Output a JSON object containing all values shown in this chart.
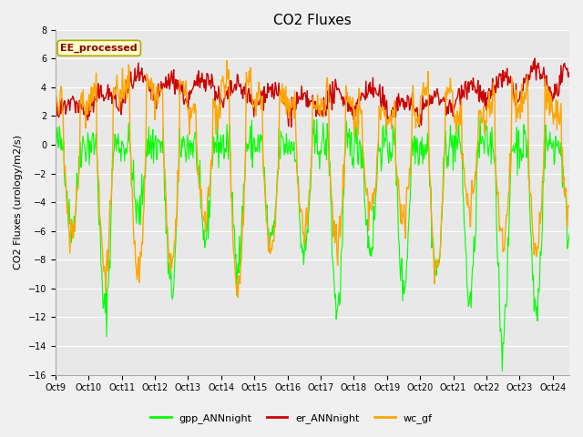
{
  "title": "CO2 Fluxes",
  "ylabel": "CO2 Fluxes (urology/m2/s)",
  "ylim": [
    -16,
    8
  ],
  "yticks": [
    -16,
    -14,
    -12,
    -10,
    -8,
    -6,
    -4,
    -2,
    0,
    2,
    4,
    6,
    8
  ],
  "n_days": 15.5,
  "n_points": 744,
  "line_colors": {
    "gpp": "#00FF00",
    "er": "#CC0000",
    "wc": "#FFA500"
  },
  "line_widths": {
    "gpp": 0.8,
    "er": 1.0,
    "wc": 1.0
  },
  "legend_labels": [
    "gpp_ANNnight",
    "er_ANNnight",
    "wc_gf"
  ],
  "annotation_text": "EE_processed",
  "annotation_color": "#880000",
  "annotation_bg": "#FFFFCC",
  "annotation_edge": "#AAAA00",
  "fig_bg": "#F0F0F0",
  "plot_bg": "#E8E8E8",
  "x_date_labels": [
    "Oct 9",
    "Oct 10",
    "Oct 11",
    "Oct 12",
    "Oct 13",
    "Oct 14",
    "Oct 15",
    "Oct 16",
    "Oct 17",
    "Oct 18",
    "Oct 19",
    "Oct 20",
    "Oct 21",
    "Oct 22",
    "Oct 23",
    "Oct 24"
  ],
  "grid_color": "#FFFFFF",
  "title_fontsize": 11,
  "tick_fontsize": 7,
  "ylabel_fontsize": 8,
  "legend_fontsize": 8
}
